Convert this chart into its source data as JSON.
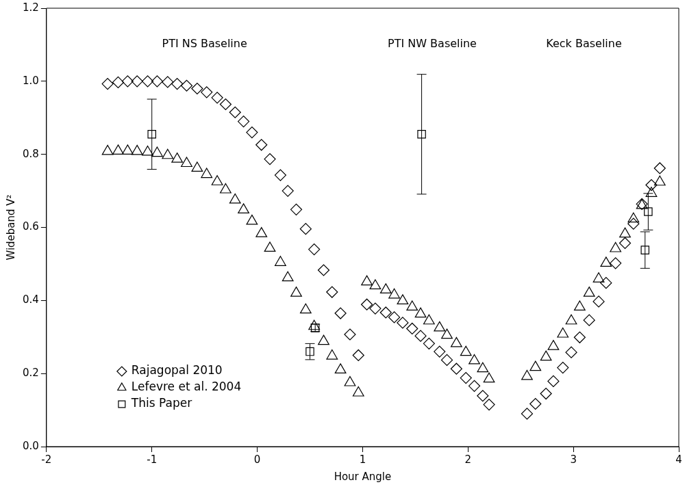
{
  "chart_data": {
    "type": "scatter",
    "xlabel": "Hour Angle",
    "ylabel": "Wideband V²",
    "xlim": [
      -2,
      4
    ],
    "xticks": [
      -2,
      -1,
      0,
      1,
      2,
      3,
      4
    ],
    "ylim": [
      0,
      1.2
    ],
    "yticks": [
      {
        "value": 0,
        "label": "0.0"
      },
      {
        "value": 0.2,
        "label": "0.2"
      },
      {
        "value": 0.4,
        "label": "0.4"
      },
      {
        "value": 0.6,
        "label": "0.6"
      },
      {
        "value": 0.8,
        "label": "0.8"
      },
      {
        "value": 1,
        "label": "1.0"
      },
      {
        "value": 1.2,
        "label": "1.2"
      }
    ],
    "grid": false,
    "legend": "bottom left",
    "annotations": [
      "PTI NS Baseline",
      "PTI NW Baseline",
      "Keck Baseline"
    ],
    "series": [
      {
        "name": "Rajagopal 2010",
        "color": "#000000",
        "marker": "diamond",
        "x": [
          -1.42,
          -1.32,
          -1.23,
          -1.14,
          -1.04,
          -0.95,
          -0.85,
          -0.76,
          -0.67,
          -0.57,
          -0.48,
          -0.38,
          -0.3,
          -0.21,
          -0.13,
          -0.05,
          0.04,
          0.12,
          0.22,
          0.29,
          0.37,
          0.46,
          0.54,
          0.63,
          0.71,
          0.79,
          0.88,
          0.96,
          1.04,
          1.12,
          1.22,
          1.3,
          1.38,
          1.47,
          1.55,
          1.63,
          1.73,
          1.8,
          1.89,
          1.98,
          2.06,
          2.14,
          2.2,
          2.56,
          2.64,
          2.74,
          2.81,
          2.9,
          2.98,
          3.06,
          3.15,
          3.24,
          3.31,
          3.4,
          3.49,
          3.57,
          3.65,
          3.74,
          3.82
        ],
        "values": [
          0.993,
          0.997,
          1.0,
          1.0,
          1.0,
          1.0,
          0.998,
          0.993,
          0.988,
          0.98,
          0.97,
          0.955,
          0.937,
          0.915,
          0.89,
          0.86,
          0.826,
          0.787,
          0.743,
          0.7,
          0.649,
          0.596,
          0.54,
          0.483,
          0.423,
          0.365,
          0.307,
          0.25,
          0.389,
          0.378,
          0.367,
          0.354,
          0.339,
          0.323,
          0.303,
          0.282,
          0.26,
          0.237,
          0.213,
          0.188,
          0.166,
          0.139,
          0.115,
          0.09,
          0.117,
          0.145,
          0.179,
          0.216,
          0.258,
          0.299,
          0.346,
          0.397,
          0.448,
          0.502,
          0.557,
          0.61,
          0.664,
          0.716,
          0.762
        ]
      },
      {
        "name": "Lefevre et al. 2004",
        "color": "#000000",
        "marker": "triangle",
        "x": [
          -1.42,
          -1.32,
          -1.23,
          -1.14,
          -1.04,
          -0.95,
          -0.85,
          -0.76,
          -0.67,
          -0.57,
          -0.48,
          -0.38,
          -0.3,
          -0.21,
          -0.13,
          -0.05,
          0.04,
          0.12,
          0.22,
          0.29,
          0.37,
          0.46,
          0.54,
          0.63,
          0.71,
          0.79,
          0.88,
          0.96,
          1.04,
          1.12,
          1.22,
          1.3,
          1.38,
          1.47,
          1.55,
          1.63,
          1.73,
          1.8,
          1.89,
          1.98,
          2.06,
          2.14,
          2.2,
          2.56,
          2.64,
          2.74,
          2.81,
          2.9,
          2.98,
          3.06,
          3.15,
          3.24,
          3.31,
          3.4,
          3.49,
          3.57,
          3.65,
          3.74,
          3.82
        ],
        "values": [
          0.808,
          0.809,
          0.809,
          0.808,
          0.806,
          0.803,
          0.797,
          0.787,
          0.775,
          0.762,
          0.745,
          0.725,
          0.703,
          0.675,
          0.648,
          0.617,
          0.583,
          0.543,
          0.504,
          0.462,
          0.42,
          0.374,
          0.329,
          0.288,
          0.248,
          0.21,
          0.175,
          0.147,
          0.451,
          0.44,
          0.429,
          0.415,
          0.399,
          0.382,
          0.363,
          0.344,
          0.325,
          0.305,
          0.282,
          0.258,
          0.235,
          0.213,
          0.185,
          0.192,
          0.217,
          0.245,
          0.274,
          0.308,
          0.344,
          0.382,
          0.42,
          0.459,
          0.502,
          0.542,
          0.582,
          0.623,
          0.66,
          0.693,
          0.724
        ]
      },
      {
        "name": "This Paper",
        "color": "#000000",
        "marker": "square",
        "x": [
          -1.0,
          0.5,
          0.55,
          1.56,
          3.68,
          3.71
        ],
        "values": [
          0.855,
          0.26,
          0.325,
          0.855,
          0.538,
          0.643
        ],
        "errors": [
          0.096,
          0.022,
          0.01,
          0.164,
          0.05,
          0.05
        ]
      }
    ]
  }
}
